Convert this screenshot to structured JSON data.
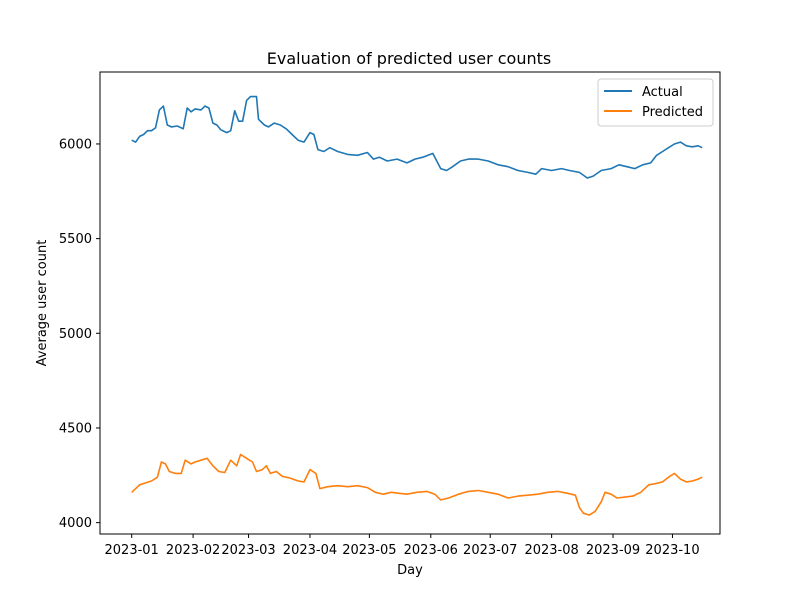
{
  "chart_data": {
    "type": "line",
    "title": "Evaluation of predicted user counts",
    "xlabel": "Day",
    "ylabel": "Average user count",
    "x_ticks": [
      "2023-01",
      "2023-02",
      "2023-03",
      "2023-04",
      "2023-05",
      "2023-06",
      "2023-07",
      "2023-08",
      "2023-09",
      "2023-10"
    ],
    "y_ticks": [
      4000,
      4500,
      5000,
      5500,
      6000
    ],
    "xlim": [
      "2022-12-16",
      "2023-10-25"
    ],
    "ylim": [
      3940,
      6380
    ],
    "legend": "top-right",
    "series": [
      {
        "name": "Actual",
        "color": "#1f77b4",
        "points": [
          [
            "2023-01-01",
            6020
          ],
          [
            "2023-01-03",
            6010
          ],
          [
            "2023-01-05",
            6040
          ],
          [
            "2023-01-07",
            6050
          ],
          [
            "2023-01-09",
            6070
          ],
          [
            "2023-01-11",
            6070
          ],
          [
            "2023-01-13",
            6085
          ],
          [
            "2023-01-15",
            6180
          ],
          [
            "2023-01-17",
            6200
          ],
          [
            "2023-01-19",
            6100
          ],
          [
            "2023-01-21",
            6090
          ],
          [
            "2023-01-24",
            6095
          ],
          [
            "2023-01-27",
            6080
          ],
          [
            "2023-01-29",
            6190
          ],
          [
            "2023-01-31",
            6170
          ],
          [
            "2023-02-02",
            6185
          ],
          [
            "2023-02-05",
            6180
          ],
          [
            "2023-02-07",
            6200
          ],
          [
            "2023-02-09",
            6190
          ],
          [
            "2023-02-11",
            6110
          ],
          [
            "2023-02-13",
            6100
          ],
          [
            "2023-02-15",
            6075
          ],
          [
            "2023-02-18",
            6060
          ],
          [
            "2023-02-20",
            6070
          ],
          [
            "2023-02-22",
            6175
          ],
          [
            "2023-02-24",
            6120
          ],
          [
            "2023-02-26",
            6120
          ],
          [
            "2023-02-28",
            6230
          ],
          [
            "2023-03-02",
            6250
          ],
          [
            "2023-03-05",
            6250
          ],
          [
            "2023-03-06",
            6130
          ],
          [
            "2023-03-09",
            6100
          ],
          [
            "2023-03-11",
            6090
          ],
          [
            "2023-03-14",
            6110
          ],
          [
            "2023-03-17",
            6100
          ],
          [
            "2023-03-20",
            6080
          ],
          [
            "2023-03-23",
            6050
          ],
          [
            "2023-03-26",
            6020
          ],
          [
            "2023-03-29",
            6010
          ],
          [
            "2023-04-01",
            6060
          ],
          [
            "2023-04-03",
            6050
          ],
          [
            "2023-04-05",
            5970
          ],
          [
            "2023-04-08",
            5960
          ],
          [
            "2023-04-11",
            5980
          ],
          [
            "2023-04-15",
            5960
          ],
          [
            "2023-04-20",
            5945
          ],
          [
            "2023-04-25",
            5940
          ],
          [
            "2023-04-30",
            5955
          ],
          [
            "2023-05-03",
            5920
          ],
          [
            "2023-05-06",
            5930
          ],
          [
            "2023-05-10",
            5910
          ],
          [
            "2023-05-15",
            5920
          ],
          [
            "2023-05-20",
            5900
          ],
          [
            "2023-05-24",
            5920
          ],
          [
            "2023-05-28",
            5930
          ],
          [
            "2023-06-02",
            5950
          ],
          [
            "2023-06-06",
            5870
          ],
          [
            "2023-06-09",
            5860
          ],
          [
            "2023-06-12",
            5880
          ],
          [
            "2023-06-16",
            5910
          ],
          [
            "2023-06-20",
            5920
          ],
          [
            "2023-06-25",
            5920
          ],
          [
            "2023-06-30",
            5910
          ],
          [
            "2023-07-05",
            5890
          ],
          [
            "2023-07-10",
            5880
          ],
          [
            "2023-07-15",
            5860
          ],
          [
            "2023-07-20",
            5850
          ],
          [
            "2023-07-24",
            5840
          ],
          [
            "2023-07-27",
            5870
          ],
          [
            "2023-08-01",
            5860
          ],
          [
            "2023-08-06",
            5870
          ],
          [
            "2023-08-10",
            5860
          ],
          [
            "2023-08-15",
            5850
          ],
          [
            "2023-08-19",
            5820
          ],
          [
            "2023-08-22",
            5830
          ],
          [
            "2023-08-26",
            5860
          ],
          [
            "2023-08-31",
            5870
          ],
          [
            "2023-09-04",
            5890
          ],
          [
            "2023-09-08",
            5880
          ],
          [
            "2023-09-12",
            5870
          ],
          [
            "2023-09-16",
            5890
          ],
          [
            "2023-09-20",
            5900
          ],
          [
            "2023-09-23",
            5940
          ],
          [
            "2023-09-26",
            5960
          ],
          [
            "2023-09-29",
            5980
          ],
          [
            "2023-10-02",
            6000
          ],
          [
            "2023-10-05",
            6010
          ],
          [
            "2023-10-08",
            5990
          ],
          [
            "2023-10-11",
            5985
          ],
          [
            "2023-10-14",
            5990
          ],
          [
            "2023-10-16",
            5980
          ]
        ]
      },
      {
        "name": "Predicted",
        "color": "#ff7f0e",
        "points": [
          [
            "2023-01-01",
            4160
          ],
          [
            "2023-01-03",
            4180
          ],
          [
            "2023-01-05",
            4200
          ],
          [
            "2023-01-08",
            4210
          ],
          [
            "2023-01-11",
            4220
          ],
          [
            "2023-01-14",
            4240
          ],
          [
            "2023-01-16",
            4320
          ],
          [
            "2023-01-18",
            4310
          ],
          [
            "2023-01-20",
            4270
          ],
          [
            "2023-01-23",
            4260
          ],
          [
            "2023-01-26",
            4260
          ],
          [
            "2023-01-28",
            4330
          ],
          [
            "2023-01-31",
            4310
          ],
          [
            "2023-02-02",
            4320
          ],
          [
            "2023-02-05",
            4330
          ],
          [
            "2023-02-08",
            4340
          ],
          [
            "2023-02-11",
            4300
          ],
          [
            "2023-02-14",
            4270
          ],
          [
            "2023-02-17",
            4265
          ],
          [
            "2023-02-20",
            4330
          ],
          [
            "2023-02-23",
            4300
          ],
          [
            "2023-02-25",
            4360
          ],
          [
            "2023-02-28",
            4340
          ],
          [
            "2023-03-03",
            4320
          ],
          [
            "2023-03-05",
            4270
          ],
          [
            "2023-03-08",
            4280
          ],
          [
            "2023-03-10",
            4300
          ],
          [
            "2023-03-12",
            4260
          ],
          [
            "2023-03-15",
            4270
          ],
          [
            "2023-03-18",
            4245
          ],
          [
            "2023-03-22",
            4235
          ],
          [
            "2023-03-26",
            4220
          ],
          [
            "2023-03-29",
            4215
          ],
          [
            "2023-04-01",
            4280
          ],
          [
            "2023-04-04",
            4260
          ],
          [
            "2023-04-06",
            4180
          ],
          [
            "2023-04-10",
            4190
          ],
          [
            "2023-04-15",
            4195
          ],
          [
            "2023-04-20",
            4190
          ],
          [
            "2023-04-25",
            4195
          ],
          [
            "2023-04-30",
            4185
          ],
          [
            "2023-05-04",
            4160
          ],
          [
            "2023-05-08",
            4150
          ],
          [
            "2023-05-12",
            4160
          ],
          [
            "2023-05-16",
            4155
          ],
          [
            "2023-05-20",
            4150
          ],
          [
            "2023-05-25",
            4160
          ],
          [
            "2023-05-30",
            4165
          ],
          [
            "2023-06-03",
            4150
          ],
          [
            "2023-06-06",
            4120
          ],
          [
            "2023-06-10",
            4130
          ],
          [
            "2023-06-15",
            4150
          ],
          [
            "2023-06-20",
            4165
          ],
          [
            "2023-06-25",
            4170
          ],
          [
            "2023-06-30",
            4160
          ],
          [
            "2023-07-05",
            4150
          ],
          [
            "2023-07-10",
            4130
          ],
          [
            "2023-07-15",
            4140
          ],
          [
            "2023-07-20",
            4145
          ],
          [
            "2023-07-25",
            4150
          ],
          [
            "2023-07-30",
            4160
          ],
          [
            "2023-08-04",
            4165
          ],
          [
            "2023-08-09",
            4155
          ],
          [
            "2023-08-13",
            4145
          ],
          [
            "2023-08-15",
            4080
          ],
          [
            "2023-08-17",
            4050
          ],
          [
            "2023-08-20",
            4040
          ],
          [
            "2023-08-23",
            4060
          ],
          [
            "2023-08-26",
            4110
          ],
          [
            "2023-08-28",
            4160
          ],
          [
            "2023-08-31",
            4150
          ],
          [
            "2023-09-03",
            4130
          ],
          [
            "2023-09-07",
            4135
          ],
          [
            "2023-09-11",
            4140
          ],
          [
            "2023-09-15",
            4160
          ],
          [
            "2023-09-19",
            4200
          ],
          [
            "2023-09-22",
            4205
          ],
          [
            "2023-09-26",
            4215
          ],
          [
            "2023-09-29",
            4240
          ],
          [
            "2023-10-02",
            4260
          ],
          [
            "2023-10-05",
            4230
          ],
          [
            "2023-10-08",
            4215
          ],
          [
            "2023-10-11",
            4220
          ],
          [
            "2023-10-14",
            4230
          ],
          [
            "2023-10-16",
            4240
          ]
        ]
      }
    ]
  }
}
